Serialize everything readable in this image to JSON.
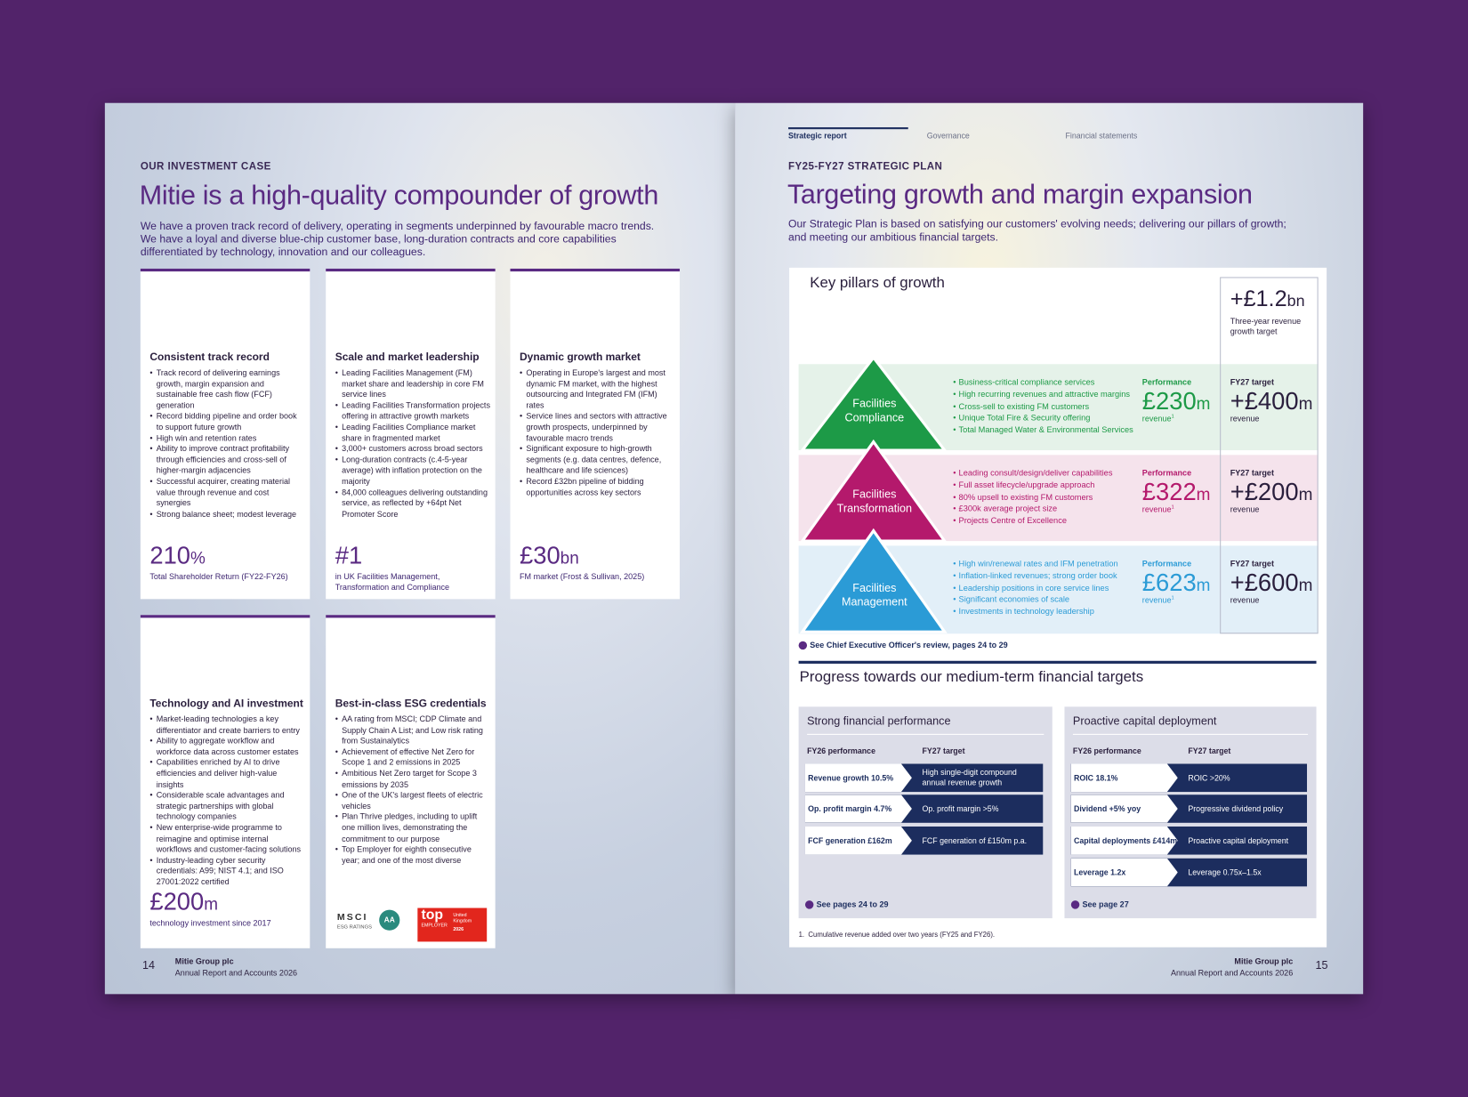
{
  "left_page": {
    "section_label": "OUR INVESTMENT CASE",
    "title": "Mitie is a high-quality compounder of growth",
    "intro": "We have a proven track record of delivery, operating in segments underpinned by favourable macro trends. We have a loyal and diverse blue-chip customer base, long-duration contracts and core capabilities differentiated by technology, innovation and our colleagues.",
    "cards": [
      {
        "title": "Consistent track record",
        "bullets": [
          "Track record of delivering earnings growth, margin expansion and sustainable free cash flow (FCF) generation",
          "Record bidding pipeline and order book to support future growth",
          "High win and retention rates",
          "Ability to improve contract profitability through efficiencies and cross-sell of higher-margin adjacencies",
          "Successful acquirer, creating material value through revenue and cost synergies",
          "Strong balance sheet; modest leverage"
        ],
        "stat_value": "210",
        "stat_unit": "%",
        "stat_label": "Total Shareholder Return (FY22-FY26)"
      },
      {
        "title": "Scale and market leadership",
        "bullets": [
          "Leading Facilities Management (FM) market share and leadership in core FM service lines",
          "Leading Facilities Transformation projects offering in attractive growth markets",
          "Leading Facilities Compliance market share in fragmented market",
          "3,000+ customers across broad sectors",
          "Long-duration contracts (c.4-5-year average) with inflation protection on the majority",
          "84,000 colleagues delivering outstanding service, as reflected by +64pt Net Promoter Score"
        ],
        "stat_value": "#1",
        "stat_label": "in UK Facilities Management, Transformation and Compliance"
      },
      {
        "title": "Dynamic growth market",
        "bullets": [
          "Operating in Europe's largest and most dynamic FM market, with the highest outsourcing and Integrated FM (IFM) rates",
          "Service lines and sectors with attractive growth prospects, underpinned by favourable macro trends",
          "Significant exposure to high-growth segments (e.g. data centres, defence, healthcare and life sciences)",
          "Record £32bn pipeline of bidding opportunities across key sectors"
        ],
        "stat_value": "£30",
        "stat_unit": "bn",
        "stat_label": "FM market (Frost & Sullivan, 2025)"
      },
      {
        "title": "Technology and AI investment",
        "bullets": [
          "Market-leading technologies a key differentiator and create barriers to entry",
          "Ability to aggregate workflow and workforce data across customer estates",
          "Capabilities enriched by AI to drive efficiencies and deliver high-value insights",
          "Considerable scale advantages and strategic partnerships with global technology companies",
          "New enterprise-wide programme to reimagine and optimise internal workflows and customer-facing solutions",
          "Industry-leading cyber security credentials: A99; NIST 4.1; and ISO 27001:2022 certified"
        ],
        "stat_value": "£200",
        "stat_unit": "m",
        "stat_label": "technology investment since 2017"
      },
      {
        "title": "Best-in-class ESG credentials",
        "bullets": [
          "AA rating from MSCI; CDP Climate and Supply Chain A List; and Low risk rating from Sustainalytics",
          "Achievement of effective Net Zero for Scope 1 and 2 emissions in 2025",
          "Ambitious Net Zero target for Scope 3 emissions by 2035",
          "One of the UK's largest fleets of electric vehicles",
          "Plan Thrive pledges, including to uplift one million lives, demonstrating the commitment to our purpose",
          "Top Employer for eighth consecutive year; and one of the most diverse"
        ]
      }
    ],
    "logos": {
      "msci": "MSCI",
      "msci_sub": "ESG RATINGS",
      "msci_rating": "AA",
      "top": "top",
      "employer": "EMPLOYER",
      "year": "2026",
      "country": "United Kingdom"
    },
    "footer": {
      "page": "14",
      "company": "Mitie Group plc",
      "report": "Annual Report and Accounts 2026"
    }
  },
  "right_page": {
    "nav": [
      "Strategic report",
      "Governance",
      "Financial statements"
    ],
    "section_label": "FY25-FY27 STRATEGIC PLAN",
    "title": "Targeting growth and margin expansion",
    "intro": "Our Strategic Plan is based on satisfying our customers' evolving needs; delivering our pillars of growth; and meeting our ambitious financial targets.",
    "pillars_heading": "Key pillars of growth",
    "growth_target": {
      "value": "+£1.2",
      "unit": "bn",
      "label": "Three-year revenue growth target"
    },
    "pillars": [
      {
        "name": "Facilities Compliance",
        "color": "#1d9a47",
        "bullets": [
          "Business-critical compliance services",
          "High recurring revenues and attractive margins",
          "Cross-sell to existing FM customers",
          "Unique Total Fire & Security offering",
          "Total Managed Water & Environmental Services"
        ],
        "performance_label": "Performance",
        "performance_value": "£230",
        "performance_unit": "m",
        "performance_note": "revenue",
        "performance_ref": "1",
        "target_label": "FY27 target",
        "target_value": "+£400",
        "target_unit": "m",
        "target_note": "revenue"
      },
      {
        "name": "Facilities Transformation",
        "color": "#b4196c",
        "bullets": [
          "Leading consult/design/deliver capabilities",
          "Full asset lifecycle/upgrade approach",
          "80% upsell to existing FM customers",
          "£300k average project size",
          "Projects Centre of Excellence"
        ],
        "performance_label": "Performance",
        "performance_value": "£322",
        "performance_unit": "m",
        "performance_note": "revenue",
        "performance_ref": "1",
        "target_label": "FY27 target",
        "target_value": "+£200",
        "target_unit": "m",
        "target_note": "revenue"
      },
      {
        "name": "Facilities Management",
        "color": "#2b9bd6",
        "bullets": [
          "High win/renewal rates and IFM penetration",
          "Inflation-linked revenues; strong order book",
          "Leadership positions in core service lines",
          "Significant economies of scale",
          "Investments in technology leadership"
        ],
        "performance_label": "Performance",
        "performance_value": "£623",
        "performance_unit": "m",
        "performance_note": "revenue",
        "performance_ref": "1",
        "target_label": "FY27 target",
        "target_value": "+£600",
        "target_unit": "m",
        "target_note": "revenue"
      }
    ],
    "pillars_link": "See Chief Executive Officer's review, pages 24 to 29",
    "progress_heading": "Progress towards our medium-term financial targets",
    "boxes": [
      {
        "title": "Strong financial performance",
        "col_performance": "FY26 performance",
        "col_target": "FY27 target",
        "rows": [
          [
            "Revenue growth 10.5%",
            "High single-digit compound annual revenue growth"
          ],
          [
            "Op. profit margin 4.7%",
            "Op. profit margin >5%"
          ],
          [
            "FCF generation £162m",
            "FCF generation of £150m p.a."
          ]
        ],
        "link": "See pages 24 to 29"
      },
      {
        "title": "Proactive capital deployment",
        "col_performance": "FY26 performance",
        "col_target": "FY27 target",
        "rows": [
          [
            "ROIC 18.1%",
            "ROIC >20%"
          ],
          [
            "Dividend +5% yoy",
            "Progressive dividend policy"
          ],
          [
            "Capital deployments £414m",
            "Proactive capital deployment"
          ],
          [
            "Leverage 1.2x",
            "Leverage 0.75x–1.5x"
          ]
        ],
        "link": "See page 27"
      }
    ],
    "footnote": "1.  Cumulative revenue added over two years (FY25 and FY26).",
    "footer": {
      "page": "15",
      "company": "Mitie Group plc",
      "report": "Annual Report and Accounts 2026"
    }
  }
}
